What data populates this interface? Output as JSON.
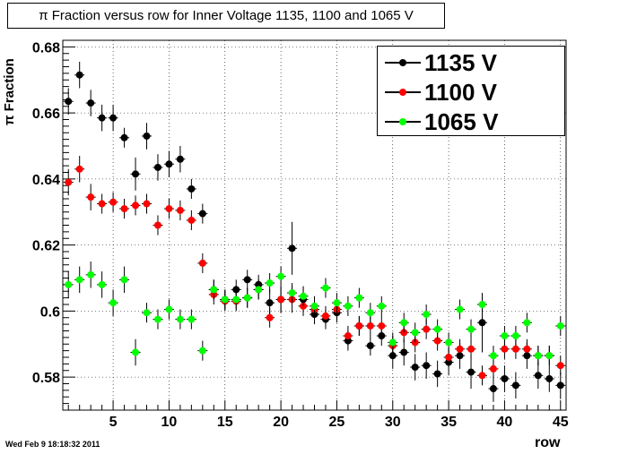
{
  "window": {
    "datestamp": "Wed Feb  9 18:18:32 2011"
  },
  "chart_data": {
    "type": "scatter",
    "title": "π Fraction versus row for Inner Voltage 1135, 1100 and 1065 V",
    "xlabel": "row",
    "ylabel": "π Fraction",
    "xlim": [
      0.5,
      45.5
    ],
    "ylim": [
      0.57,
      0.682
    ],
    "x_ticks": [
      5,
      10,
      15,
      20,
      25,
      30,
      35,
      40,
      45
    ],
    "y_ticks": [
      0.58,
      0.6,
      0.62,
      0.64,
      0.66,
      0.68
    ],
    "y_tick_labels": [
      "0.58",
      "0.6",
      "0.62",
      "0.64",
      "0.66",
      "0.68"
    ],
    "grid": true,
    "legend_position": "top-right",
    "series": [
      {
        "name": "1135 V",
        "color": "#000000",
        "x": [
          1,
          2,
          3,
          4,
          5,
          6,
          7,
          8,
          9,
          10,
          11,
          12,
          13,
          14,
          15,
          16,
          17,
          18,
          19,
          20,
          21,
          22,
          23,
          24,
          25,
          26,
          27,
          28,
          29,
          30,
          31,
          32,
          33,
          34,
          35,
          36,
          37,
          38,
          39,
          40,
          41,
          42,
          43,
          44,
          45
        ],
        "y": [
          0.6635,
          0.6715,
          0.663,
          0.6585,
          0.6585,
          0.6525,
          0.6415,
          0.653,
          0.6435,
          0.6445,
          0.646,
          0.637,
          0.6295,
          0.6065,
          0.6035,
          0.6065,
          0.6095,
          0.608,
          0.6025,
          0.6035,
          0.619,
          0.6035,
          0.599,
          0.5975,
          0.5995,
          0.591,
          0.5955,
          0.5895,
          0.5925,
          0.5865,
          0.5875,
          0.583,
          0.5835,
          0.581,
          0.5845,
          0.5865,
          0.5815,
          0.5965,
          0.5765,
          0.5795,
          0.5775,
          0.5865,
          0.5805,
          0.5795,
          0.5775
        ],
        "yerr": [
          0.004,
          0.004,
          0.004,
          0.004,
          0.004,
          0.003,
          0.005,
          0.004,
          0.004,
          0.004,
          0.004,
          0.003,
          0.003,
          0.003,
          0.003,
          0.003,
          0.003,
          0.003,
          0.004,
          0.004,
          0.008,
          0.004,
          0.003,
          0.003,
          0.003,
          0.003,
          0.003,
          0.003,
          0.003,
          0.004,
          0.004,
          0.004,
          0.004,
          0.004,
          0.004,
          0.004,
          0.005,
          0.009,
          0.004,
          0.004,
          0.004,
          0.004,
          0.004,
          0.004,
          0.004
        ]
      },
      {
        "name": "1100 V",
        "color": "#ff0000",
        "x": [
          1,
          2,
          3,
          4,
          5,
          6,
          7,
          8,
          9,
          10,
          11,
          12,
          13,
          14,
          15,
          16,
          17,
          18,
          19,
          20,
          21,
          22,
          23,
          24,
          25,
          26,
          27,
          28,
          29,
          30,
          31,
          32,
          33,
          34,
          35,
          36,
          37,
          38,
          39,
          40,
          41,
          42,
          43,
          44,
          45
        ],
        "y": [
          0.639,
          0.643,
          0.6345,
          0.6325,
          0.633,
          0.631,
          0.632,
          0.6325,
          0.626,
          0.631,
          0.6305,
          0.6275,
          0.6145,
          0.605,
          0.603,
          0.603,
          0.604,
          0.6065,
          0.598,
          0.6035,
          0.6035,
          0.6015,
          0.6005,
          0.5985,
          0.6005,
          0.5925,
          0.5955,
          0.5955,
          0.5955,
          0.5895,
          0.5935,
          0.5905,
          0.5945,
          0.591,
          0.586,
          0.5885,
          0.5885,
          0.5805,
          0.5825,
          0.5885,
          0.5885,
          0.5885,
          0.5865,
          0.5865,
          0.5835
        ],
        "yerr": [
          0.004,
          0.004,
          0.004,
          0.003,
          0.003,
          0.003,
          0.003,
          0.003,
          0.003,
          0.003,
          0.003,
          0.003,
          0.003,
          0.003,
          0.003,
          0.003,
          0.003,
          0.003,
          0.003,
          0.004,
          0.004,
          0.003,
          0.003,
          0.003,
          0.003,
          0.003,
          0.003,
          0.003,
          0.003,
          0.003,
          0.003,
          0.003,
          0.003,
          0.003,
          0.003,
          0.003,
          0.003,
          0.003,
          0.003,
          0.003,
          0.003,
          0.003,
          0.003,
          0.003,
          0.003
        ]
      },
      {
        "name": "1065 V",
        "color": "#00ff00",
        "x": [
          1,
          2,
          3,
          4,
          5,
          6,
          7,
          8,
          9,
          10,
          11,
          12,
          13,
          14,
          15,
          16,
          17,
          18,
          19,
          20,
          21,
          22,
          23,
          24,
          25,
          26,
          27,
          28,
          29,
          30,
          31,
          32,
          33,
          34,
          35,
          36,
          37,
          38,
          39,
          40,
          41,
          42,
          43,
          44,
          45
        ],
        "y": [
          0.608,
          0.6095,
          0.611,
          0.608,
          0.6025,
          0.6095,
          0.5875,
          0.5995,
          0.5975,
          0.6005,
          0.5975,
          0.5975,
          0.588,
          0.6065,
          0.6035,
          0.6035,
          0.604,
          0.6065,
          0.6085,
          0.6105,
          0.6055,
          0.6045,
          0.6015,
          0.607,
          0.6025,
          0.6015,
          0.604,
          0.5995,
          0.6015,
          0.5905,
          0.5965,
          0.5935,
          0.599,
          0.5945,
          0.5905,
          0.6005,
          0.5945,
          0.602,
          0.5865,
          0.5925,
          0.5925,
          0.5965,
          0.5865,
          0.5865,
          0.5955
        ],
        "yerr": [
          0.004,
          0.004,
          0.004,
          0.004,
          0.004,
          0.004,
          0.004,
          0.003,
          0.003,
          0.003,
          0.003,
          0.003,
          0.003,
          0.003,
          0.003,
          0.003,
          0.003,
          0.003,
          0.003,
          0.003,
          0.003,
          0.003,
          0.003,
          0.003,
          0.003,
          0.003,
          0.003,
          0.003,
          0.003,
          0.003,
          0.003,
          0.003,
          0.003,
          0.003,
          0.003,
          0.003,
          0.003,
          0.003,
          0.003,
          0.003,
          0.003,
          0.003,
          0.003,
          0.003,
          0.003
        ]
      }
    ]
  }
}
